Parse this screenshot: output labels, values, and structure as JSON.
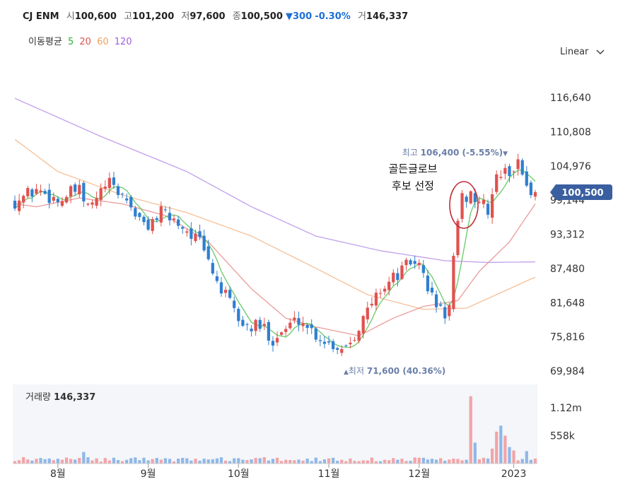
{
  "header": {
    "name": "CJ ENM",
    "open_label": "시",
    "open": "100,600",
    "high_label": "고",
    "high": "101,200",
    "low_label": "저",
    "low": "97,600",
    "close_label": "종",
    "close": "100,500",
    "change_arrow": "▼",
    "change": "300",
    "change_pct": "-0.30%",
    "volume_label": "거",
    "volume": "146,337"
  },
  "ma_legend": {
    "label": "이동평균",
    "items": [
      {
        "label": "5",
        "color": "#33b033"
      },
      {
        "label": "20",
        "color": "#e0524f"
      },
      {
        "label": "60",
        "color": "#f0a060"
      },
      {
        "label": "120",
        "color": "#9d5fe0"
      }
    ]
  },
  "scale_select": {
    "value": "Linear",
    "icon": "chevron-down-icon"
  },
  "chart_data": {
    "type": "candlestick",
    "ylim": [
      69984,
      118000
    ],
    "y_ticks": [
      "116,640",
      "110,808",
      "104,976",
      "99,144",
      "93,312",
      "87,480",
      "81,648",
      "75,816",
      "69,984"
    ],
    "y_tick_values": [
      116640,
      110808,
      104976,
      99144,
      93312,
      87480,
      81648,
      75816,
      69984
    ],
    "x_labels": [
      "8월",
      "9월",
      "10월",
      "11월",
      "12월",
      "2023"
    ],
    "x_label_positions": [
      10,
      31,
      52,
      73,
      94,
      116
    ],
    "current_price": {
      "label": "100,500",
      "value": 100500,
      "color": "#3a5fa0"
    },
    "max_annotation": {
      "label": "최고",
      "value_text": "106,400 (-5.55%)",
      "arrow": "▼",
      "value": 106400,
      "index": 113
    },
    "min_annotation": {
      "label": "최저",
      "value_text": "71,600 (40.36%)",
      "arrow": "▲",
      "value": 71600,
      "index": 79
    },
    "annotation_text": [
      "골든글로브",
      "후보 선정"
    ],
    "up_color": "#e0524f",
    "down_color": "#2f7fd0",
    "ma_anchors": {
      "ma120": [
        [
          0,
          116500
        ],
        [
          20,
          110000
        ],
        [
          40,
          104000
        ],
        [
          55,
          98000
        ],
        [
          70,
          93000
        ],
        [
          85,
          90500
        ],
        [
          100,
          88800
        ],
        [
          110,
          88500
        ],
        [
          121,
          88600
        ]
      ],
      "ma60": [
        [
          0,
          109500
        ],
        [
          10,
          104000
        ],
        [
          25,
          100000
        ],
        [
          40,
          97000
        ],
        [
          55,
          93000
        ],
        [
          70,
          87500
        ],
        [
          82,
          83000
        ],
        [
          95,
          80500
        ],
        [
          105,
          80700
        ],
        [
          121,
          86000
        ]
      ],
      "ma20": [
        [
          0,
          98500
        ],
        [
          5,
          98000
        ],
        [
          15,
          99500
        ],
        [
          25,
          98500
        ],
        [
          35,
          96500
        ],
        [
          45,
          92000
        ],
        [
          55,
          84000
        ],
        [
          63,
          79000
        ],
        [
          70,
          77500
        ],
        [
          80,
          76000
        ],
        [
          88,
          79000
        ],
        [
          95,
          81000
        ],
        [
          103,
          82000
        ],
        [
          108,
          87000
        ],
        [
          115,
          92000
        ],
        [
          121,
          98500
        ]
      ]
    },
    "volume": {
      "title": "거래량",
      "value": "146,337",
      "y_ticks": [
        "1.12m",
        "558k"
      ],
      "y_tick_values": [
        1120000,
        558000
      ],
      "ymax": 1360000,
      "up_color": "#f2a4a8",
      "down_color": "#8fb8e8"
    }
  }
}
